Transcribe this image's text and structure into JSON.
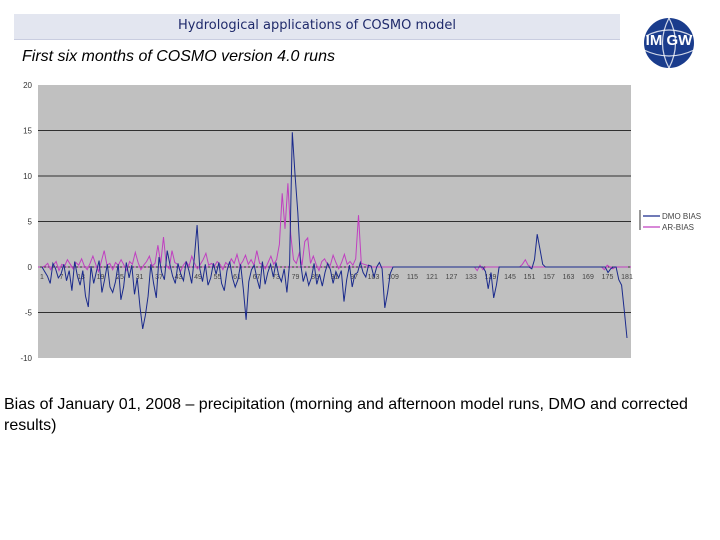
{
  "header": {
    "title": "Hydrological applications of COSMO model"
  },
  "logo": {
    "text": "IM GW",
    "icon": "imgw-globe-logo",
    "color": "#1a3c8c"
  },
  "subtitle": "First six months of COSMO version 4.0 runs",
  "caption": "Bias of January 01, 2008 – precipitation (morning and afternoon model runs, DMO and corrected results)",
  "chart_data": {
    "type": "line",
    "title": "",
    "xlabel": "",
    "ylabel": "",
    "ylim": [
      -10,
      20
    ],
    "yticks": [
      -10,
      -5,
      0,
      5,
      10,
      15,
      20
    ],
    "ytick_labels": [
      "-10",
      "-5",
      "0",
      "5",
      "10",
      "15",
      "20"
    ],
    "xlim": [
      1,
      181
    ],
    "xticks": [
      1,
      7,
      13,
      19,
      25,
      31,
      37,
      43,
      49,
      55,
      61,
      67,
      73,
      79,
      85,
      91,
      97,
      103,
      109,
      115,
      121,
      127,
      133,
      139,
      145,
      151,
      157,
      163,
      169,
      175,
      181
    ],
    "grid": "horizontal",
    "legend_position": "right",
    "series": [
      {
        "name": "DMO BIAS",
        "color": "#1a2a8c",
        "values": [
          0,
          -0.5,
          -1,
          -1.8,
          0.4,
          -0.2,
          -1.2,
          -0.8,
          0.3,
          -1.5,
          -0.4,
          -2.6,
          0.6,
          -1,
          -2,
          -0.4,
          -3.2,
          -4.4,
          0.1,
          -1.8,
          -0.5,
          0.7,
          -2.8,
          -1.4,
          0.3,
          -2.2,
          -2.8,
          -1.6,
          0.3,
          -3.6,
          -2.2,
          0.5,
          -1.2,
          0.2,
          -3,
          -1.2,
          -4.4,
          -6.8,
          -5.3,
          -3.2,
          0.3,
          -1.8,
          -3.4,
          1.1,
          -0.6,
          -1.4,
          1.8,
          0.3,
          -1,
          -1.8,
          0.4,
          -0.8,
          -1.5,
          0.6,
          -0.4,
          -1.8,
          1.1,
          4.6,
          -0.2,
          -1.6,
          0.3,
          -2,
          -1.2,
          0.4,
          -0.8,
          0.5,
          -1.8,
          -2.6,
          -0.4,
          0.6,
          -1.2,
          -2.2,
          -1.4,
          0.3,
          -2.4,
          -5.8,
          -1.6,
          -0.3,
          0.2,
          -1.3,
          -2.4,
          0.6,
          -1.9,
          -0.6,
          0.3,
          -1.1,
          0.5,
          -0.9,
          -1.6,
          -0.2,
          -2.8,
          0.4,
          14.8,
          10.2,
          6,
          0.5,
          -1.6,
          -0.6,
          -2,
          -1.2,
          0.4,
          -1.9,
          -0.8,
          -2.1,
          -0.6,
          0.4,
          -0.3,
          -1.8,
          -0.5,
          -1.2,
          -0.4,
          -3.8,
          -1.4,
          0.2,
          -2.2,
          -0.8,
          -0.6,
          0.5,
          -0.6,
          -1.1,
          0.2,
          0.1,
          -1.1,
          0,
          0.5,
          -0.2,
          -4.5,
          -2.8,
          -0.7,
          0,
          0,
          0,
          0,
          0,
          0,
          0,
          0,
          0,
          0,
          0,
          0,
          0,
          0,
          0,
          0,
          0,
          0,
          0,
          0,
          0,
          0,
          0,
          0,
          0,
          0,
          0,
          0,
          0,
          0,
          0,
          0,
          0,
          0,
          -0.5,
          -2.4,
          -0.6,
          -3.4,
          -2,
          0,
          0,
          0,
          0,
          0,
          0,
          0,
          0,
          0,
          0,
          0,
          0,
          -0.2,
          0.8,
          3.6,
          2,
          0.3,
          0,
          0,
          0,
          0,
          0,
          0,
          0,
          0,
          0,
          0,
          0,
          0,
          0,
          0,
          0,
          0,
          0,
          0,
          0,
          0,
          0,
          0,
          0,
          -0.6,
          -0.2,
          0,
          0,
          -1.4,
          -2,
          -4.8,
          -7.8
        ]
      },
      {
        "name": "AR-BIAS",
        "color": "#c040c0",
        "values": [
          0,
          0.1,
          0.4,
          -0.3,
          0.2,
          0.6,
          -0.4,
          0.3,
          0.1,
          0.8,
          0.3,
          -0.2,
          0.5,
          0.2,
          0.9,
          0.1,
          -0.3,
          0.4,
          1.2,
          0.3,
          -0.5,
          0.6,
          1.8,
          0.2,
          0.4,
          -0.3,
          0.5,
          0.2,
          0.8,
          0.2,
          -0.4,
          0.6,
          0.3,
          1.6,
          0.5,
          -0.3,
          0.2,
          0.6,
          1.2,
          0.1,
          0.4,
          2.4,
          0.4,
          3.3,
          0.2,
          -0.2,
          1.8,
          0.5,
          0.3,
          -0.5,
          0.2,
          0.6,
          0.1,
          1.2,
          0.4,
          -0.2,
          0.3,
          0.8,
          1.5,
          0.2,
          0.4,
          0.1,
          0.6,
          0.3,
          -0.3,
          0.5,
          0.2,
          0.9,
          0.4,
          1.4,
          0.2,
          0.6,
          1.3,
          0.3,
          0.8,
          0.2,
          1.8,
          0.4,
          0.3,
          -0.2,
          0.5,
          1.2,
          0.3,
          0.8,
          2.5,
          8.1,
          4.2,
          9.2,
          3.6,
          0.8,
          0.4,
          1.5,
          0.2,
          2.8,
          3.2,
          0.4,
          1.2,
          0.3,
          -0.4,
          0.6,
          0.9,
          0.3,
          0.2,
          1.3,
          0.5,
          -0.2,
          0.5,
          1.4,
          0.3,
          0.6,
          0.2,
          0.9,
          5.7,
          0.4,
          0.3,
          0.2,
          0,
          0,
          0,
          0,
          0,
          0,
          0,
          0,
          0,
          0,
          0,
          0,
          0,
          0,
          0,
          0,
          0,
          0,
          0,
          0,
          0,
          0,
          0,
          0,
          0,
          0,
          0,
          0,
          0,
          0,
          0,
          0,
          0,
          0,
          0,
          0,
          0,
          0,
          -0.4,
          0.2,
          -0.3,
          0,
          0,
          0,
          0,
          0,
          0,
          0,
          0,
          0,
          0,
          0,
          0,
          0,
          0.3,
          0.8,
          0.2,
          0,
          0,
          0,
          0,
          0,
          0,
          0,
          0,
          0,
          0,
          0,
          0,
          0,
          0,
          0,
          0,
          0,
          0,
          0,
          0,
          0,
          0,
          0,
          0,
          0,
          0,
          -0.3,
          0.2,
          0,
          -0.2,
          0,
          0,
          0,
          0,
          0
        ]
      }
    ]
  }
}
